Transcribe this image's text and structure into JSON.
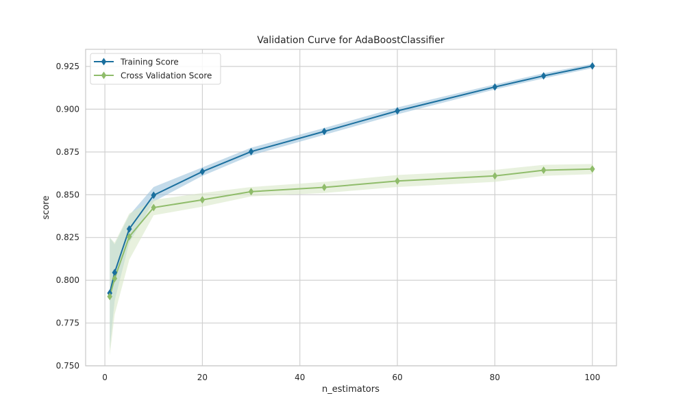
{
  "chart_data": {
    "type": "line",
    "title": "Validation Curve for AdaBoostClassifier",
    "xlabel": "n_estimators",
    "ylabel": "score",
    "xlim": [
      -3.95,
      104.95
    ],
    "ylim": [
      0.75,
      0.935
    ],
    "x_ticks": [
      0,
      20,
      40,
      60,
      80,
      100
    ],
    "y_ticks": [
      0.75,
      0.775,
      0.8,
      0.825,
      0.85,
      0.875,
      0.9,
      0.925
    ],
    "x_tick_labels": [
      "0",
      "20",
      "40",
      "60",
      "80",
      "100"
    ],
    "y_tick_labels": [
      "0.750",
      "0.775",
      "0.800",
      "0.825",
      "0.850",
      "0.875",
      "0.900",
      "0.925"
    ],
    "grid": true,
    "legend_position": "top-left",
    "x": [
      1,
      2,
      5,
      10,
      20,
      30,
      45,
      60,
      80,
      90,
      100
    ],
    "series": [
      {
        "name": "Training Score",
        "color": "#1a6f9e",
        "band_color": "#9cc3dc",
        "marker": "diamond",
        "values": [
          0.7925,
          0.8045,
          0.83,
          0.8497,
          0.8635,
          0.8752,
          0.887,
          0.899,
          0.913,
          0.9195,
          0.9253
        ],
        "lower": [
          0.76,
          0.788,
          0.822,
          0.846,
          0.861,
          0.873,
          0.885,
          0.897,
          0.9115,
          0.918,
          0.924
        ],
        "upper": [
          0.825,
          0.821,
          0.838,
          0.8545,
          0.866,
          0.8775,
          0.889,
          0.901,
          0.9145,
          0.921,
          0.9265
        ]
      },
      {
        "name": "Cross Validation Score",
        "color": "#8fbc6a",
        "band_color": "#d9e8c8",
        "marker": "diamond",
        "values": [
          0.7905,
          0.801,
          0.8255,
          0.8425,
          0.847,
          0.8518,
          0.8543,
          0.858,
          0.861,
          0.8643,
          0.865
        ],
        "lower": [
          0.756,
          0.78,
          0.812,
          0.838,
          0.843,
          0.849,
          0.851,
          0.8545,
          0.8575,
          0.861,
          0.862
        ],
        "upper": [
          0.825,
          0.822,
          0.839,
          0.847,
          0.851,
          0.8545,
          0.8575,
          0.8615,
          0.8645,
          0.8675,
          0.868
        ]
      }
    ]
  }
}
